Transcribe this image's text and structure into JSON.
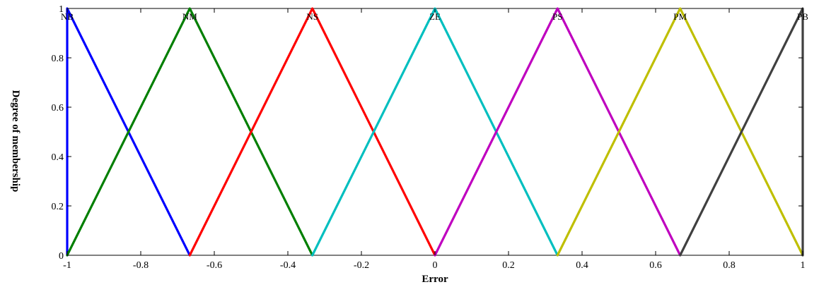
{
  "chart_data": {
    "type": "line",
    "xlabel": "Error",
    "ylabel": "Degree of membership",
    "xlim": [
      -1,
      1
    ],
    "ylim": [
      0,
      1
    ],
    "grid": false,
    "xticks": [
      -1,
      -0.8,
      -0.6,
      -0.4,
      -0.2,
      0,
      0.2,
      0.4,
      0.6,
      0.8,
      1
    ],
    "xtick_labels": [
      "-1",
      "-0.8",
      "-0.6",
      "-0.4",
      "-0.2",
      "0",
      "0.2",
      "0.4",
      "0.6",
      "0.8",
      "1"
    ],
    "yticks": [
      0,
      0.2,
      0.4,
      0.6,
      0.8,
      1
    ],
    "ytick_labels": [
      "0",
      "0.2",
      "0.4",
      "0.6",
      "0.8",
      "1"
    ],
    "series": [
      {
        "name": "NB",
        "color": "#0000ff",
        "x": [
          -1,
          -1,
          -0.6667
        ],
        "y": [
          0,
          1,
          0
        ]
      },
      {
        "name": "NM",
        "color": "#007f00",
        "x": [
          -1,
          -0.6667,
          -0.3333
        ],
        "y": [
          0,
          1,
          0
        ]
      },
      {
        "name": "NS",
        "color": "#ff0000",
        "x": [
          -0.6667,
          -0.3333,
          0
        ],
        "y": [
          0,
          1,
          0
        ]
      },
      {
        "name": "ZE",
        "color": "#00bfbf",
        "x": [
          -0.3333,
          0,
          0.3333
        ],
        "y": [
          0,
          1,
          0
        ]
      },
      {
        "name": "PS",
        "color": "#bf00bf",
        "x": [
          0,
          0.3333,
          0.6667
        ],
        "y": [
          0,
          1,
          0
        ]
      },
      {
        "name": "PM",
        "color": "#bfbf00",
        "x": [
          0.3333,
          0.6667,
          1
        ],
        "y": [
          0,
          1,
          0
        ]
      },
      {
        "name": "PB",
        "color": "#404040",
        "x": [
          0.6667,
          1,
          1
        ],
        "y": [
          0,
          1,
          0
        ]
      }
    ]
  }
}
